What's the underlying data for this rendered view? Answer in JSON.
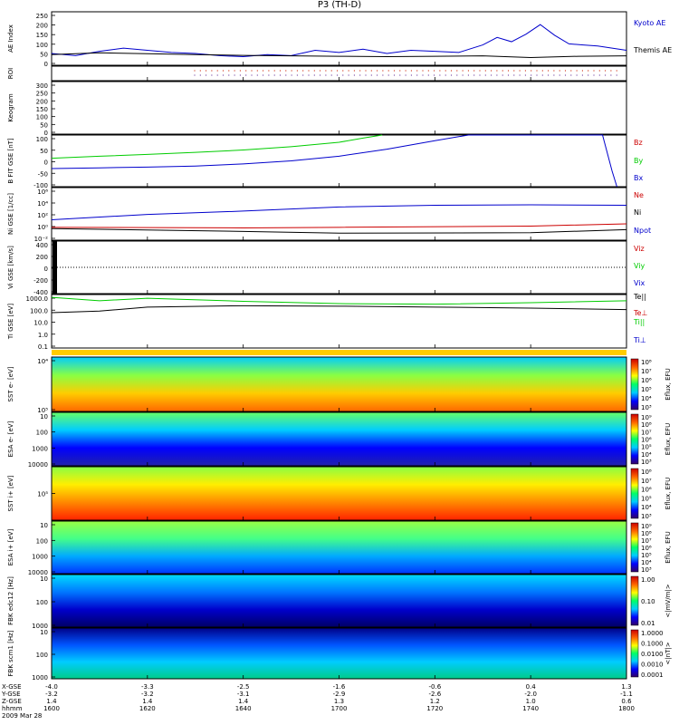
{
  "title": "P3 (TH-D)",
  "colors": {
    "black": "#000000",
    "blue": "#0000cc",
    "green": "#00cc00",
    "red": "#cc0000"
  },
  "chart_data": [
    {
      "type": "line",
      "ylabel": "AE Index",
      "ylim": [
        0,
        250
      ],
      "yticks": [
        "0",
        "50",
        "100",
        "150",
        "200",
        "250"
      ],
      "series": [
        {
          "name": "Kyoto AE",
          "color": "#0000cc",
          "x": [
            1600,
            1605,
            1610,
            1615,
            1620,
            1625,
            1630,
            1635,
            1640,
            1645,
            1650,
            1655,
            1700,
            1705,
            1710,
            1715,
            1720,
            1725,
            1730,
            1733,
            1736,
            1739,
            1742,
            1745,
            1748,
            1751,
            1754,
            1757,
            1800
          ],
          "values": [
            55,
            45,
            65,
            80,
            70,
            60,
            55,
            45,
            40,
            50,
            45,
            70,
            60,
            75,
            55,
            70,
            65,
            60,
            95,
            130,
            110,
            145,
            190,
            140,
            100,
            95,
            90,
            80,
            70
          ]
        },
        {
          "name": "Themis AE",
          "color": "#000000",
          "x": [
            1600,
            1610,
            1620,
            1630,
            1640,
            1650,
            1700,
            1710,
            1720,
            1730,
            1740,
            1750,
            1800
          ],
          "values": [
            50,
            58,
            54,
            50,
            46,
            44,
            42,
            40,
            42,
            44,
            36,
            42,
            44
          ]
        }
      ]
    },
    {
      "type": "line",
      "ylabel": "ROI",
      "note": ""
    },
    {
      "type": "line",
      "ylabel": "Keogram",
      "ylim": [
        0,
        300
      ],
      "yticks": [
        "0",
        "50",
        "100",
        "150",
        "200",
        "250",
        "300"
      ]
    },
    {
      "type": "line",
      "ylabel": "B FIT GSE [nT]",
      "ylim": [
        -100,
        100
      ],
      "yticks": [
        "-100",
        "-50",
        "0",
        "50",
        "100"
      ],
      "series": [
        {
          "name": "Bz",
          "color": "#cc0000",
          "x": [],
          "values": []
        },
        {
          "name": "By",
          "color": "#00cc00",
          "x": [
            1600,
            1610,
            1620,
            1630,
            1640,
            1650,
            1700,
            1705,
            1709
          ],
          "values": [
            10,
            18,
            25,
            33,
            42,
            55,
            72,
            88,
            100
          ]
        },
        {
          "name": "Bx",
          "color": "#0000cc",
          "x": [
            1600,
            1610,
            1620,
            1630,
            1640,
            1650,
            1700,
            1710,
            1720,
            1727,
            1755,
            1757,
            1758
          ],
          "values": [
            -30,
            -27,
            -24,
            -20,
            -12,
            0,
            18,
            45,
            78,
            100,
            100,
            -40,
            -100
          ]
        }
      ]
    },
    {
      "type": "line",
      "ylabel": "Ni GSE [1/cc]",
      "yscale": "log",
      "yticks": [
        "10⁻²",
        "10⁰",
        "10²",
        "10⁴",
        "10⁶"
      ],
      "series": [
        {
          "name": "Ne",
          "color": "#cc0000",
          "x": [
            1600,
            1640,
            1700,
            1740,
            1800
          ],
          "values": [
            0.5,
            0.4,
            0.5,
            0.8,
            2
          ]
        },
        {
          "name": "Ni",
          "color": "#0000cc",
          "x": [
            1600,
            1620,
            1640,
            1700,
            1720,
            1740,
            1800
          ],
          "values": [
            10,
            80,
            300,
            1500,
            3000,
            3500,
            3000
          ]
        },
        {
          "name": "Npot",
          "color": "#000000",
          "x": [
            1600,
            1640,
            1700,
            1740,
            1800
          ],
          "values": [
            0.3,
            0.1,
            0.05,
            0.06,
            0.2
          ]
        }
      ]
    },
    {
      "type": "line",
      "ylabel": "Vi GSE [km/s]",
      "ylim": [
        -500,
        500
      ],
      "yticks": [
        "-400",
        "-200",
        "0",
        "200",
        "400"
      ],
      "series": [
        {
          "name": "Viz",
          "color": "#cc0000",
          "x": [],
          "values": []
        },
        {
          "name": "Viy",
          "color": "#00cc00",
          "x": [],
          "values": []
        },
        {
          "name": "Vix",
          "color": "#0000cc",
          "x": [],
          "values": []
        }
      ]
    },
    {
      "type": "line",
      "ylabel": "Ti GSE [eV]",
      "yscale": "log",
      "yticks": [
        "0.1",
        "1.0",
        "10.0",
        "100.0",
        "1000.0"
      ],
      "series": [
        {
          "name": "Te||",
          "color": "#000000",
          "x": [
            1600,
            1610,
            1620,
            1640,
            1700,
            1720,
            1740,
            1800
          ],
          "values": [
            80,
            110,
            250,
            330,
            300,
            250,
            200,
            150
          ]
        },
        {
          "name": "Te⊥",
          "color": "#cc0000",
          "x": [],
          "values": []
        },
        {
          "name": "Ti||",
          "color": "#00cc00",
          "x": [
            1600,
            1610,
            1620,
            1640,
            1700,
            1720,
            1740,
            1800
          ],
          "values": [
            1800,
            900,
            1500,
            800,
            500,
            450,
            600,
            900
          ]
        },
        {
          "name": "Ti⊥",
          "color": "#0000cc",
          "x": [],
          "values": []
        }
      ]
    },
    {
      "type": "heatmap",
      "ylabel": "SST e- [eV]",
      "yticks": [
        "10⁵",
        "10⁴"
      ],
      "colorbar_label": "Eflux, EFU",
      "colorbar_ticks": [
        "10⁸",
        "10⁷",
        "10⁶",
        "10⁵",
        "10⁴",
        "10³"
      ]
    },
    {
      "type": "heatmap",
      "ylabel": "ESA e- [eV]",
      "yticks": [
        "10000",
        "1000",
        "100",
        "10"
      ],
      "colorbar_label": "Eflux, EFU",
      "colorbar_ticks": [
        "10⁹",
        "10⁸",
        "10⁷",
        "10⁶",
        "10⁵",
        "10⁴",
        "10³"
      ]
    },
    {
      "type": "heatmap",
      "ylabel": "SST i+ [eV]",
      "yticks": [
        "10⁵"
      ],
      "colorbar_label": "Eflux, EFU",
      "colorbar_ticks": [
        "10⁸",
        "10⁷",
        "10⁶",
        "10⁵",
        "10⁴",
        "10³"
      ]
    },
    {
      "type": "heatmap",
      "ylabel": "ESA i+ [eV]",
      "yticks": [
        "10000",
        "1000",
        "100",
        "10"
      ],
      "colorbar_label": "Eflux, EFU",
      "colorbar_ticks": [
        "10⁹",
        "10⁸",
        "10⁷",
        "10⁶",
        "10⁵",
        "10⁴",
        "10³"
      ]
    },
    {
      "type": "heatmap",
      "ylabel": "FBK edc12 [Hz]",
      "yticks": [
        "1000",
        "100",
        "10"
      ],
      "colorbar_label": "<|mV/m|>",
      "colorbar_ticks": [
        "1.00",
        "0.10",
        "0.01"
      ]
    },
    {
      "type": "heatmap",
      "ylabel": "FBK scm1 [Hz]",
      "yticks": [
        "1000",
        "100",
        "10"
      ],
      "colorbar_label": "<|nT|>",
      "colorbar_ticks": [
        "1.0000",
        "0.1000",
        "0.0100",
        "0.0010",
        "0.0001"
      ]
    }
  ],
  "right_labels": {
    "ae": [
      "Kyoto AE",
      "Themis AE"
    ],
    "b": [
      "Bz",
      "By",
      "Bx"
    ],
    "n": [
      "Ne",
      "Ni",
      "Npot"
    ],
    "v": [
      "Viz",
      "Viy",
      "Vix",
      "Te||"
    ],
    "t": [
      "Te⊥",
      "Ti||",
      "Ti⊥"
    ]
  },
  "xaxis": {
    "rows": [
      "X-GSE",
      "Y-GSE",
      "Z-GSE",
      "hhmm"
    ],
    "date": "2009 Mar 28",
    "columns": [
      {
        "x": "-4.0",
        "y": "-3.2",
        "z": "1.4",
        "t": "1600"
      },
      {
        "x": "-3.3",
        "y": "-3.2",
        "z": "1.4",
        "t": "1620"
      },
      {
        "x": "-2.5",
        "y": "-3.1",
        "z": "1.4",
        "t": "1640"
      },
      {
        "x": "-1.6",
        "y": "-2.9",
        "z": "1.3",
        "t": "1700"
      },
      {
        "x": "-0.6",
        "y": "-2.6",
        "z": "1.2",
        "t": "1720"
      },
      {
        "x": "0.4",
        "y": "-2.0",
        "z": "1.0",
        "t": "1740"
      },
      {
        "x": "1.3",
        "y": "-1.1",
        "z": "0.6",
        "t": "1800"
      }
    ]
  }
}
